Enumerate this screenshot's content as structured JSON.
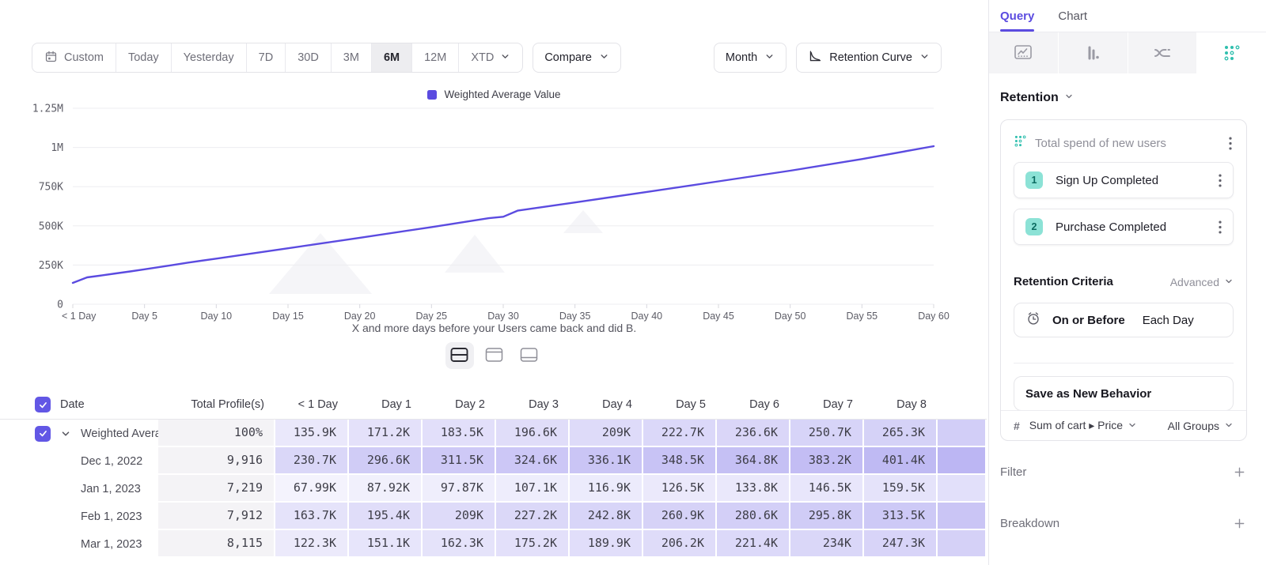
{
  "colors": {
    "accent_purple": "#5b4be0",
    "heat_rgb": "96,82,226",
    "teal": "#2fbfae",
    "teal_badge_bg": "#8ce2d6",
    "teal_badge_text": "#0b6b60"
  },
  "toolbar": {
    "ranges": [
      {
        "label": "Custom",
        "icon": "calendar",
        "active": false
      },
      {
        "label": "Today",
        "active": false
      },
      {
        "label": "Yesterday",
        "active": false
      },
      {
        "label": "7D",
        "active": false
      },
      {
        "label": "30D",
        "active": false
      },
      {
        "label": "3M",
        "active": false
      },
      {
        "label": "6M",
        "active": true
      },
      {
        "label": "12M",
        "active": false
      },
      {
        "label": "XTD",
        "chevron": true,
        "active": false
      }
    ],
    "compare_label": "Compare",
    "granularity_label": "Month",
    "chart_type_label": "Retention Curve"
  },
  "chart_data": {
    "type": "line",
    "legend_label": "Weighted Average Value",
    "legend_position": "top",
    "xlabel": "X and more days before your Users came back and did B.",
    "x_ticks": [
      "< 1 Day",
      "Day 5",
      "Day 10",
      "Day 15",
      "Day 20",
      "Day 25",
      "Day 30",
      "Day 35",
      "Day 40",
      "Day 45",
      "Day 50",
      "Day 55",
      "Day 60"
    ],
    "x_tick_days": [
      0,
      5,
      10,
      15,
      20,
      25,
      30,
      35,
      40,
      45,
      50,
      55,
      60
    ],
    "y_ticks": [
      "0",
      "250K",
      "500K",
      "750K",
      "1M",
      "1.25M"
    ],
    "ylim": [
      0,
      1250000
    ],
    "xlim": [
      0,
      60
    ],
    "grid": true,
    "series": [
      {
        "name": "Weighted Average Value",
        "color": "#5b4be0",
        "points": [
          [
            0,
            135900
          ],
          [
            1,
            171200
          ],
          [
            2,
            183500
          ],
          [
            3,
            196600
          ],
          [
            4,
            209000
          ],
          [
            5,
            222700
          ],
          [
            6,
            236600
          ],
          [
            7,
            250700
          ],
          [
            8,
            265300
          ],
          [
            10,
            291000
          ],
          [
            15,
            357000
          ],
          [
            20,
            424000
          ],
          [
            25,
            492000
          ],
          [
            29,
            549000
          ],
          [
            30,
            558000
          ],
          [
            31,
            597000
          ],
          [
            35,
            649000
          ],
          [
            40,
            716000
          ],
          [
            45,
            784000
          ],
          [
            50,
            852000
          ],
          [
            55,
            926000
          ],
          [
            60,
            1008000
          ]
        ]
      }
    ]
  },
  "view_toggles": [
    {
      "name": "split-view",
      "active": true
    },
    {
      "name": "chart-only-view",
      "active": false
    },
    {
      "name": "table-only-view",
      "active": false
    }
  ],
  "table": {
    "headers": [
      "Date",
      "Total Profile(s)",
      "< 1 Day",
      "Day 1",
      "Day 2",
      "Day 3",
      "Day 4",
      "Day 5",
      "Day 6",
      "Day 7",
      "Day 8"
    ],
    "rows": [
      {
        "label": "Weighted Average ...",
        "checked": true,
        "expandable": true,
        "profiles": "100%",
        "values": [
          135900,
          171200,
          183500,
          196600,
          209000,
          222700,
          236600,
          250700,
          265300
        ],
        "display": [
          "135.9K",
          "171.2K",
          "183.5K",
          "196.6K",
          "209K",
          "222.7K",
          "236.6K",
          "250.7K",
          "265.3K"
        ]
      },
      {
        "label": "Dec 1, 2022",
        "checked": false,
        "expandable": false,
        "profiles": "9,916",
        "values": [
          230700,
          296600,
          311500,
          324600,
          336100,
          348500,
          364800,
          383200,
          401400
        ],
        "display": [
          "230.7K",
          "296.6K",
          "311.5K",
          "324.6K",
          "336.1K",
          "348.5K",
          "364.8K",
          "383.2K",
          "401.4K"
        ]
      },
      {
        "label": "Jan 1, 2023",
        "checked": false,
        "expandable": false,
        "profiles": "7,219",
        "values": [
          67990,
          87920,
          97870,
          107100,
          116900,
          126500,
          133800,
          146500,
          159500
        ],
        "display": [
          "67.99K",
          "87.92K",
          "97.87K",
          "107.1K",
          "116.9K",
          "126.5K",
          "133.8K",
          "146.5K",
          "159.5K"
        ]
      },
      {
        "label": "Feb 1, 2023",
        "checked": false,
        "expandable": false,
        "profiles": "7,912",
        "values": [
          163700,
          195400,
          209000,
          227200,
          242800,
          260900,
          280600,
          295800,
          313500
        ],
        "display": [
          "163.7K",
          "195.4K",
          "209K",
          "227.2K",
          "242.8K",
          "260.9K",
          "280.6K",
          "295.8K",
          "313.5K"
        ]
      },
      {
        "label": "Mar 1, 2023",
        "checked": false,
        "expandable": false,
        "profiles": "8,115",
        "values": [
          122300,
          151100,
          162300,
          175200,
          189900,
          206200,
          221400,
          234000,
          247300
        ],
        "display": [
          "122.3K",
          "151.1K",
          "162.3K",
          "175.2K",
          "189.9K",
          "206.2K",
          "221.4K",
          "234K",
          "247.3K"
        ]
      }
    ]
  },
  "sidebar": {
    "tabs": [
      {
        "label": "Query",
        "active": true
      },
      {
        "label": "Chart",
        "active": false
      }
    ],
    "chart_type_tabs": [
      {
        "name": "line-chart",
        "active": false
      },
      {
        "name": "bar-chart",
        "active": false
      },
      {
        "name": "flow-chart",
        "active": false
      },
      {
        "name": "retention-grid",
        "active": true
      }
    ],
    "section_label": "Retention",
    "behavior_card": {
      "title": "Total spend of new users",
      "steps": [
        {
          "num": "1",
          "label": "Sign Up Completed"
        },
        {
          "num": "2",
          "label": "Purchase Completed"
        }
      ],
      "criteria_label": "Retention Criteria",
      "criteria_mode": "Advanced",
      "criteria_operator": "On or Before",
      "criteria_value": "Each Day",
      "save_label": "Save as New Behavior",
      "measure_prefix": "#",
      "measure_label": "Sum of cart ▸ Price",
      "measure_groups": "All Groups"
    },
    "filter_label": "Filter",
    "breakdown_label": "Breakdown"
  }
}
